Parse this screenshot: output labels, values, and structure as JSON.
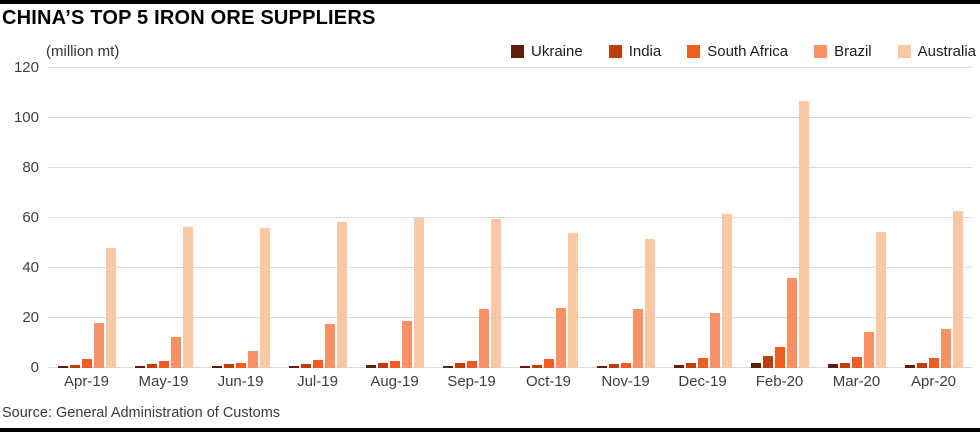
{
  "title": "CHINA’S TOP 5 IRON ORE SUPPLIERS",
  "units_label": "(million mt)",
  "source": "Source: General Administration of Customs",
  "chart_data": {
    "type": "bar",
    "title": "CHINA’S TOP 5 IRON ORE SUPPLIERS",
    "xlabel": "",
    "ylabel": "(million mt)",
    "categories": [
      "Apr-19",
      "May-19",
      "Jun-19",
      "Jul-19",
      "Aug-19",
      "Sep-19",
      "Oct-19",
      "Nov-19",
      "Dec-19",
      "Feb-20",
      "Mar-20",
      "Apr-20"
    ],
    "series": [
      {
        "name": "Ukraine",
        "color": "#5e1e0b",
        "values": [
          0.8,
          0.8,
          0.7,
          0.7,
          1.2,
          1.0,
          0.7,
          1.0,
          1.2,
          2.0,
          1.5,
          1.2
        ]
      },
      {
        "name": "India",
        "color": "#bf3c0f",
        "values": [
          1.2,
          1.8,
          1.5,
          1.8,
          2.0,
          2.0,
          1.2,
          1.8,
          2.2,
          5.0,
          2.0,
          2.2
        ]
      },
      {
        "name": "South Africa",
        "color": "#f05c22",
        "values": [
          3.5,
          2.8,
          2.0,
          3.2,
          3.0,
          2.8,
          3.5,
          2.0,
          4.0,
          8.5,
          4.5,
          4.0
        ]
      },
      {
        "name": "Brazil",
        "color": "#f69266",
        "values": [
          18.0,
          12.5,
          7.0,
          17.8,
          19.0,
          23.5,
          24.0,
          23.5,
          22.0,
          36.0,
          14.5,
          15.5
        ]
      },
      {
        "name": "Australia",
        "color": "#f9c9a5",
        "values": [
          48.0,
          56.5,
          56.0,
          58.5,
          60.0,
          59.5,
          54.0,
          51.5,
          61.5,
          107.0,
          54.5,
          63.0
        ]
      }
    ],
    "ylim": [
      0,
      120
    ],
    "yticks": [
      0,
      20,
      40,
      60,
      80,
      100,
      120
    ],
    "grid": true,
    "legend_position": "top-right"
  }
}
